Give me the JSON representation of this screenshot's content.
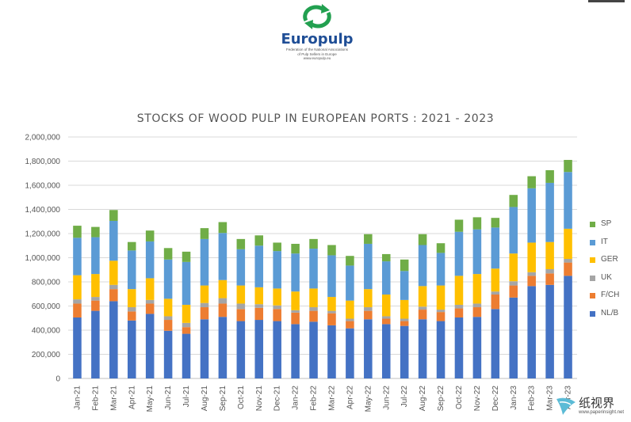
{
  "header": {
    "brand": "Europulp",
    "tagline_1": "Federation of the National Associations",
    "tagline_2": "of Pulp Sellers in Europe",
    "tagline_3": "www.europulp.eu"
  },
  "watermark": {
    "text": "纸视界",
    "sub": "www.paperinsight.net"
  },
  "colors": {
    "NL/B": "#4472c4",
    "F/CH": "#ed7d31",
    "UK": "#a5a5a5",
    "GER": "#ffc000",
    "IT": "#5b9bd5",
    "SP": "#70ad47",
    "brand": "#1f4e96",
    "logo_green": "#22a050"
  },
  "chart_data": {
    "type": "bar",
    "stacked": true,
    "title": "STOCKS OF WOOD PULP IN EUROPEAN PORTS : 2021 - 2023",
    "xlabel": "",
    "ylabel": "",
    "ylim": [
      0,
      2000000
    ],
    "yticks": [
      "0",
      "200,000",
      "400,000",
      "600,000",
      "800,000",
      "1,000,000",
      "1,200,000",
      "1,400,000",
      "1,600,000",
      "1,800,000",
      "2,000,000"
    ],
    "grid": true,
    "legend_position": "right",
    "categories": [
      "Jan-21",
      "Feb-21",
      "Mar-21",
      "Apr-21",
      "May-21",
      "Jun-21",
      "Jul-21",
      "Aug-21",
      "Sep-21",
      "Oct-21",
      "Nov-21",
      "Dec-21",
      "Jan-22",
      "Feb-22",
      "Mar-22",
      "Apr-22",
      "May-22",
      "Jun-22",
      "Jul-22",
      "Aug-22",
      "Sep-22",
      "Oct-22",
      "Nov-22",
      "Dec-22",
      "Jan-23",
      "Feb-23",
      "Mar-23",
      "Apr-23"
    ],
    "series": [
      {
        "name": "NL/B",
        "values": [
          505000,
          560000,
          640000,
          480000,
          535000,
          395000,
          370000,
          490000,
          510000,
          475000,
          485000,
          475000,
          450000,
          470000,
          440000,
          415000,
          490000,
          450000,
          435000,
          490000,
          475000,
          505000,
          510000,
          575000,
          670000,
          765000,
          775000,
          850000
        ]
      },
      {
        "name": "F/CH",
        "values": [
          115000,
          85000,
          100000,
          75000,
          85000,
          90000,
          55000,
          100000,
          110000,
          100000,
          100000,
          100000,
          95000,
          90000,
          100000,
          60000,
          70000,
          45000,
          40000,
          80000,
          75000,
          75000,
          80000,
          120000,
          100000,
          85000,
          95000,
          110000
        ]
      },
      {
        "name": "UK",
        "values": [
          35000,
          30000,
          35000,
          35000,
          30000,
          30000,
          35000,
          35000,
          45000,
          45000,
          30000,
          30000,
          20000,
          30000,
          20000,
          20000,
          30000,
          20000,
          20000,
          25000,
          20000,
          30000,
          30000,
          25000,
          35000,
          30000,
          35000,
          30000
        ]
      },
      {
        "name": "GER",
        "values": [
          200000,
          190000,
          200000,
          150000,
          180000,
          145000,
          150000,
          145000,
          150000,
          150000,
          140000,
          140000,
          155000,
          155000,
          115000,
          150000,
          150000,
          180000,
          155000,
          170000,
          200000,
          240000,
          245000,
          190000,
          230000,
          245000,
          225000,
          250000
        ]
      },
      {
        "name": "IT",
        "values": [
          310000,
          305000,
          330000,
          320000,
          305000,
          325000,
          355000,
          385000,
          390000,
          300000,
          345000,
          310000,
          315000,
          330000,
          345000,
          290000,
          375000,
          275000,
          240000,
          340000,
          270000,
          365000,
          370000,
          340000,
          385000,
          450000,
          490000,
          470000
        ]
      },
      {
        "name": "SP",
        "values": [
          100000,
          85000,
          90000,
          70000,
          90000,
          95000,
          85000,
          90000,
          90000,
          85000,
          85000,
          70000,
          80000,
          80000,
          85000,
          80000,
          80000,
          60000,
          95000,
          90000,
          80000,
          100000,
          100000,
          80000,
          100000,
          100000,
          105000,
          100000
        ]
      }
    ]
  }
}
